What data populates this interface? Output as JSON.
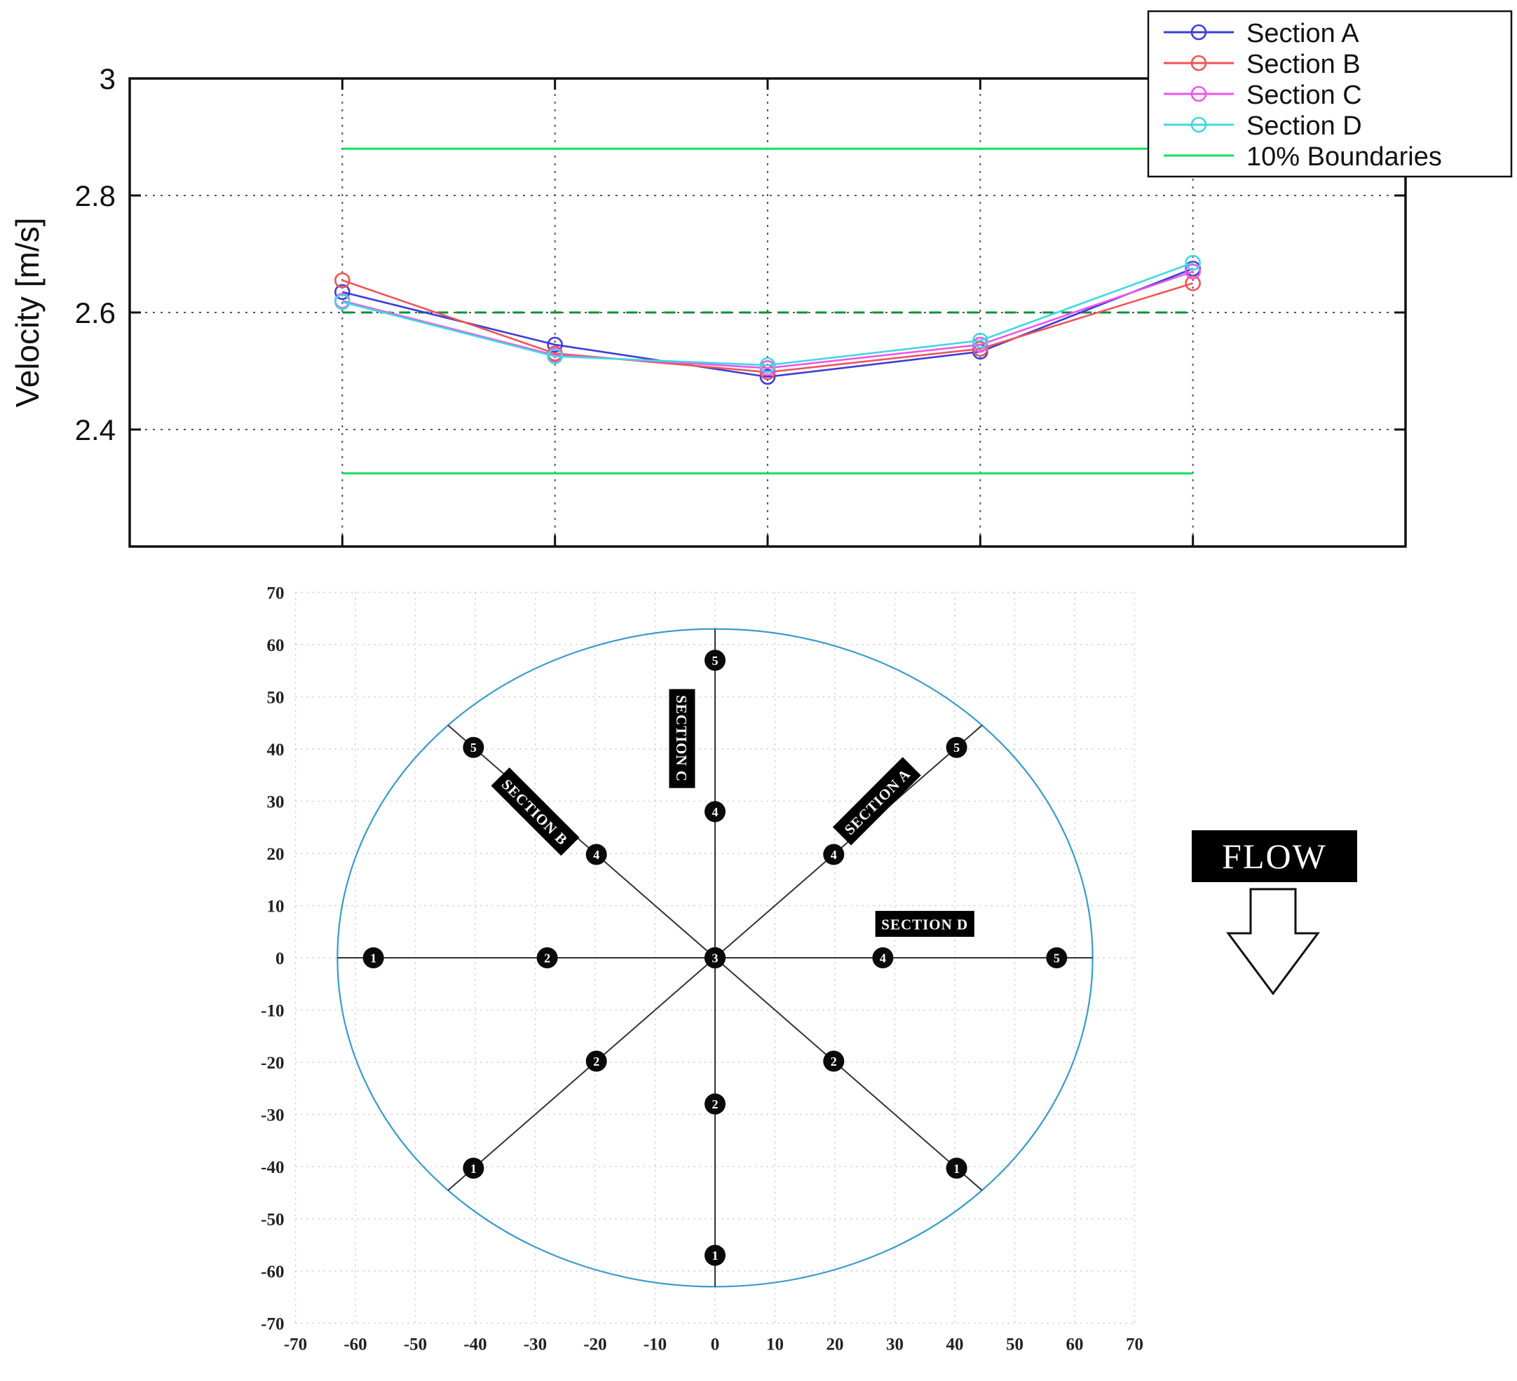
{
  "flow": {
    "label": "FLOW"
  },
  "chart_data": [
    {
      "type": "line",
      "title": "",
      "xlabel": "",
      "ylabel": "Velocity [m/s]",
      "ylim": [
        2.2,
        3.0
      ],
      "yticks": [
        2.4,
        2.6,
        2.8,
        3
      ],
      "xlim": [
        0,
        6
      ],
      "x": [
        1,
        2,
        3,
        4,
        5
      ],
      "grid": "dotted",
      "series": [
        {
          "name": "Section A",
          "color": "#3d3dd8",
          "marker": "circle",
          "values": [
            2.635,
            2.545,
            2.49,
            2.533,
            2.675
          ]
        },
        {
          "name": "Section B",
          "color": "#ee5555",
          "marker": "circle",
          "values": [
            2.655,
            2.53,
            2.498,
            2.538,
            2.65
          ]
        },
        {
          "name": "Section C",
          "color": "#ee55ee",
          "marker": "circle",
          "values": [
            2.62,
            2.527,
            2.505,
            2.545,
            2.67
          ]
        },
        {
          "name": "Section D",
          "color": "#40d8e0",
          "marker": "circle",
          "values": [
            2.618,
            2.525,
            2.51,
            2.552,
            2.685
          ]
        }
      ],
      "boundaries": {
        "name": "10% Boundaries",
        "color": "#15e060",
        "upper": 2.88,
        "lower": 2.325,
        "mean": 2.6,
        "mean_color": "#0c8f3f",
        "mean_style": "dashed"
      },
      "legend": {
        "position": "top-right",
        "entries": [
          "Section A",
          "Section B",
          "Section C",
          "Section D",
          "10% Boundaries"
        ]
      }
    },
    {
      "type": "scatter",
      "title": "",
      "xlim": [
        -70,
        70
      ],
      "ylim": [
        -70,
        70
      ],
      "ticks": [
        -70,
        -60,
        -50,
        -40,
        -30,
        -20,
        -10,
        0,
        10,
        20,
        30,
        40,
        50,
        60,
        70
      ],
      "grid": "dotted",
      "circle": {
        "radius": 63,
        "color": "#3a9bc8"
      },
      "point_radii": [
        -57,
        -28,
        0,
        28,
        57
      ],
      "point_labels": [
        "1",
        "2",
        "3",
        "4",
        "5"
      ],
      "sections": [
        {
          "name": "SECTION A",
          "angle_deg": 45,
          "label_center": [
            27,
            30
          ],
          "label_rotation": -45
        },
        {
          "name": "SECTION B",
          "angle_deg": 135,
          "label_center": [
            -30,
            28
          ],
          "label_rotation": 45
        },
        {
          "name": "SECTION C",
          "angle_deg": 90,
          "label_center": [
            -5.5,
            42
          ],
          "label_rotation": 90
        },
        {
          "name": "SECTION D",
          "angle_deg": 0,
          "label_center": [
            35,
            6.5
          ],
          "label_rotation": 0
        }
      ]
    }
  ]
}
